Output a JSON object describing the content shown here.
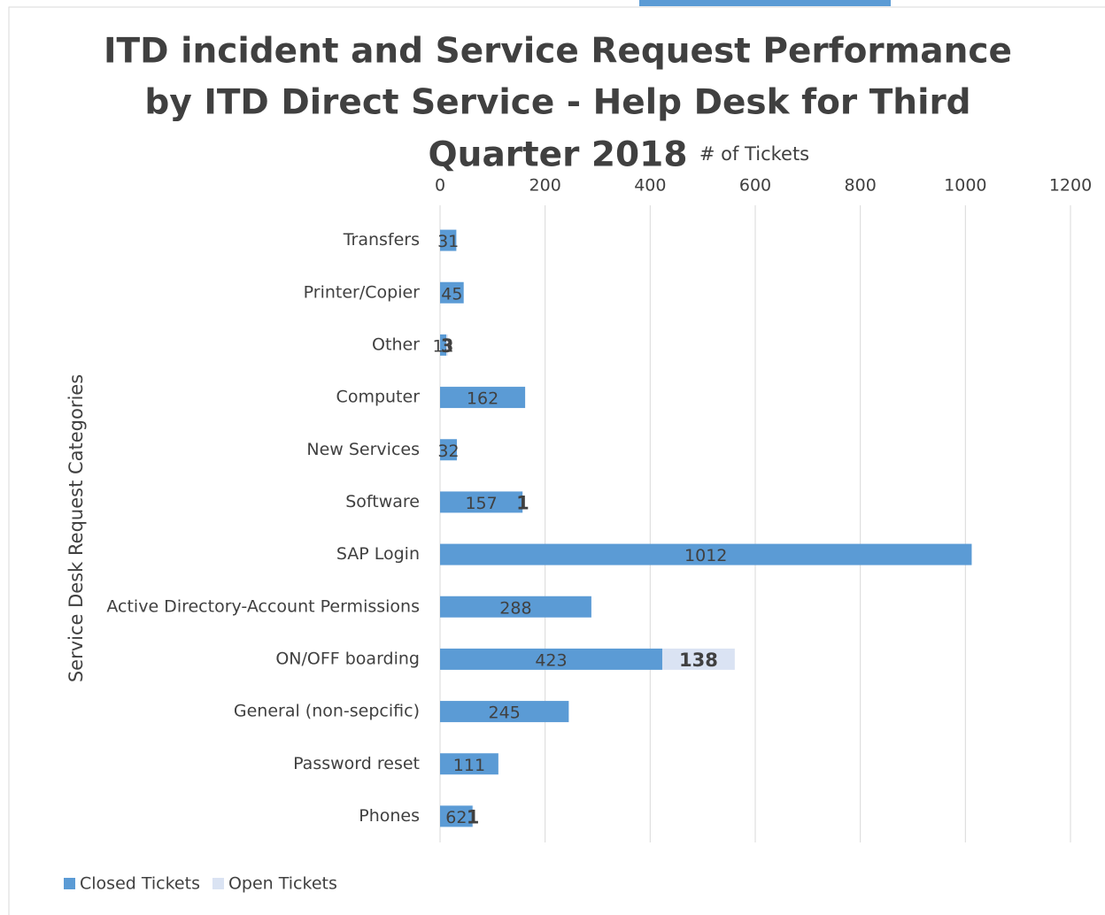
{
  "chart_data": {
    "type": "bar",
    "orientation": "horizontal",
    "stacked": true,
    "title": [
      "ITD incident and Service Request Performance",
      "by ITD Direct Service - Help Desk for Third",
      "Quarter 2018"
    ],
    "x_label": "# of Tickets",
    "y_label": "Service Desk Request Categories",
    "categories": [
      "Transfers",
      "Printer/Copier",
      "Other",
      "Computer",
      "New Services",
      "Software",
      "SAP Login",
      "Active Directory-Account Permissions",
      "ON/OFF boarding",
      "General (non-sepcific)",
      "Password reset",
      "Phones"
    ],
    "series": [
      {
        "name": "Closed Tickets",
        "color": "#5b9bd5",
        "values": [
          31,
          45,
          12,
          162,
          32,
          157,
          1012,
          288,
          423,
          245,
          111,
          62
        ]
      },
      {
        "name": "Open Tickets",
        "color": "#dae3f3",
        "values": [
          null,
          null,
          3,
          null,
          null,
          1,
          null,
          null,
          138,
          null,
          null,
          1
        ]
      }
    ],
    "xlim": [
      0,
      1200
    ],
    "xticks": [
      0,
      200,
      400,
      600,
      800,
      1000,
      1200
    ],
    "grid": true,
    "legend": "bottom-left"
  }
}
